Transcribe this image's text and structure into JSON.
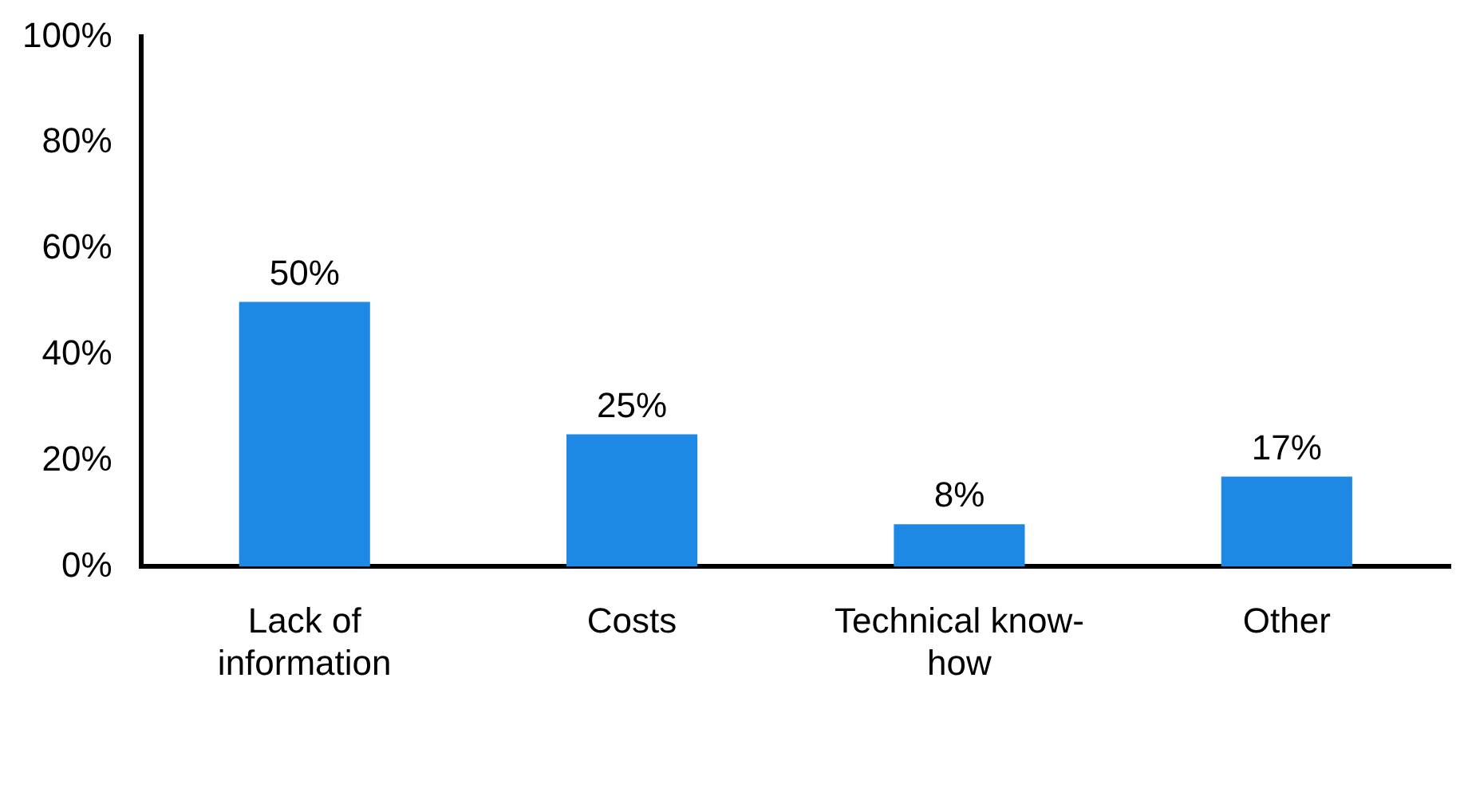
{
  "chart_data": {
    "type": "bar",
    "categories": [
      "Lack of information",
      "Costs",
      "Technical know-how",
      "Other"
    ],
    "values": [
      50,
      25,
      8,
      17
    ],
    "color": "#1e88e5",
    "ylim": [
      0,
      100
    ],
    "yticks": [
      {
        "value": 0,
        "label": "0%"
      },
      {
        "value": 20,
        "label": "20%"
      },
      {
        "value": 40,
        "label": "40%"
      },
      {
        "value": 60,
        "label": "60%"
      },
      {
        "value": 80,
        "label": "80%"
      },
      {
        "value": 100,
        "label": "100%"
      }
    ],
    "value_labels": [
      "50%",
      "25%",
      "8%",
      "17%"
    ],
    "grid": false,
    "legend": false
  }
}
